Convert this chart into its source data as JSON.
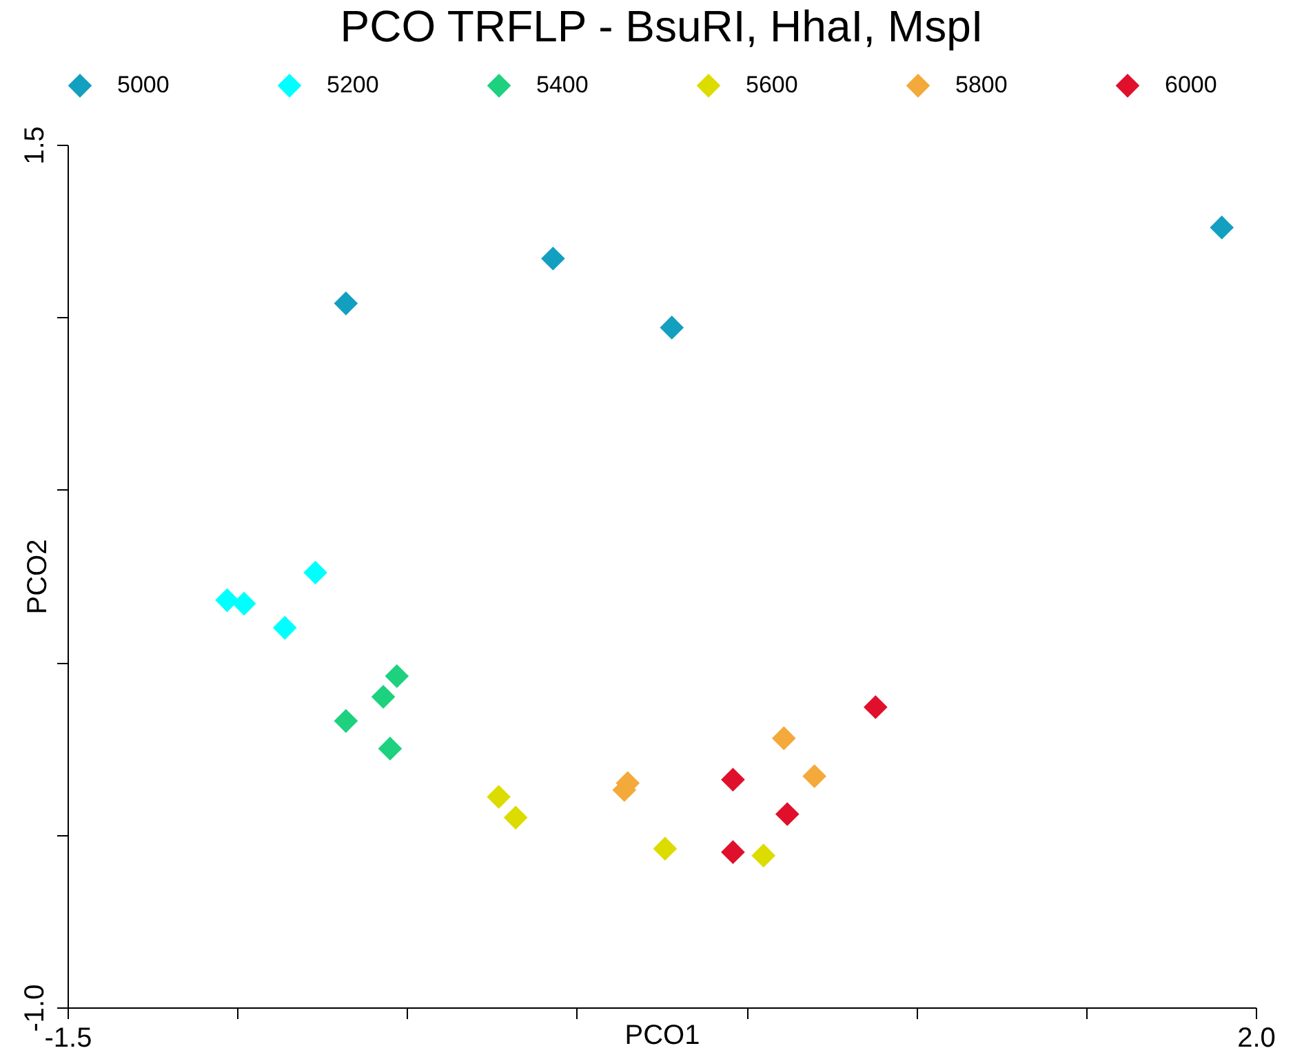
{
  "chart_data": {
    "type": "scatter",
    "title": "PCO TRFLP - BsuRI, HhaI, MspI",
    "xlabel": "PCO1",
    "ylabel": "PCO2",
    "marker": "diamond",
    "legend": "top",
    "grid": false,
    "xlim": [
      -1.5,
      2.0
    ],
    "xticks": [
      -1.5,
      {
        "value": -1,
        "label": null
      },
      {
        "value": -0.5,
        "label": null
      },
      {
        "value": 0,
        "label": null
      },
      {
        "value": 0.5,
        "label": null
      },
      {
        "value": 1,
        "label": null
      },
      {
        "value": 1.5,
        "label": null
      },
      {
        "value": 2,
        "label": "2.0"
      }
    ],
    "ylim": [
      -1.0,
      1.5
    ],
    "yticks": [
      {
        "value": -1,
        "label": "-1.0"
      },
      {
        "value": -0.5,
        "label": null
      },
      {
        "value": 0,
        "label": null
      },
      {
        "value": 0.5,
        "label": null
      },
      {
        "value": 1,
        "label": null
      },
      1.5
    ],
    "series": [
      {
        "name": "5000",
        "color": "#139fc0",
        "x": [
          -0.68,
          -0.07,
          0.28,
          1.9
        ],
        "values": [
          1.04,
          1.17,
          0.97,
          1.26
        ]
      },
      {
        "name": "5200",
        "color": "#00ffff",
        "x": [
          -1.03,
          -0.98,
          -0.86,
          -0.77
        ],
        "values": [
          0.18,
          0.17,
          0.1,
          0.26
        ]
      },
      {
        "name": "5400",
        "color": "#1ed17f",
        "x": [
          -0.68,
          -0.57,
          -0.53,
          -0.55
        ],
        "values": [
          -0.17,
          -0.1,
          -0.04,
          -0.25
        ]
      },
      {
        "name": "5600",
        "color": "#dcdc00",
        "x": [
          -0.23,
          -0.18,
          0.26,
          0.55
        ],
        "values": [
          -0.39,
          -0.45,
          -0.54,
          -0.56
        ]
      },
      {
        "name": "5800",
        "color": "#f4a93b",
        "x": [
          0.15,
          0.14,
          0.61,
          0.7
        ],
        "values": [
          -0.35,
          -0.37,
          -0.22,
          -0.33
        ]
      },
      {
        "name": "6000",
        "color": "#e0102c",
        "x": [
          0.46,
          0.46,
          0.62,
          0.88
        ],
        "values": [
          -0.34,
          -0.55,
          -0.44,
          -0.13
        ]
      }
    ]
  }
}
